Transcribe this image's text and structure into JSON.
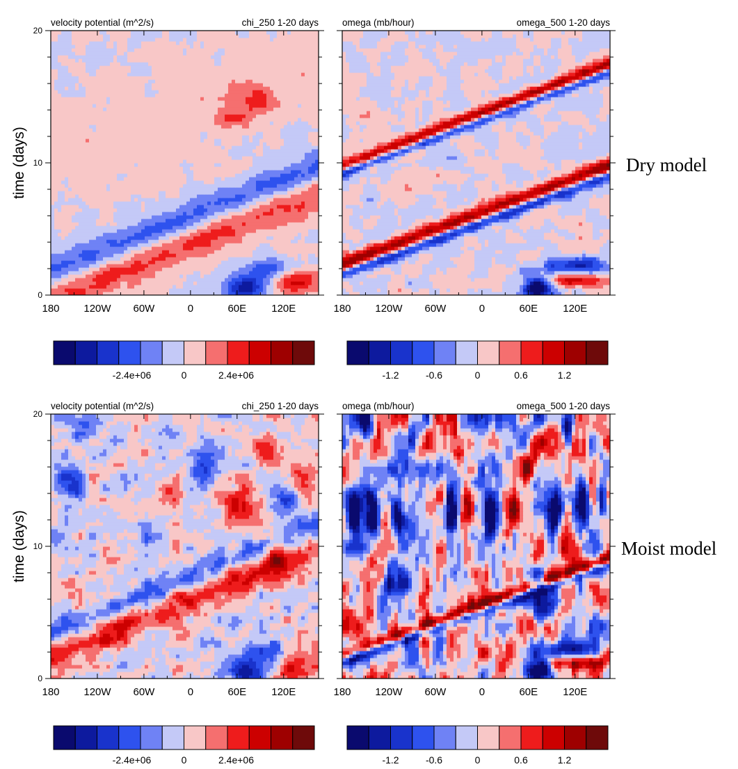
{
  "model_labels": {
    "dry": "Dry model",
    "moist": "Moist model"
  },
  "chart_data": [
    {
      "type": "heatmap",
      "row": "dry",
      "field": "chi",
      "title_left": "velocity potential (m^2/s)",
      "title_right": "chi_250 1-20 days",
      "ylabel": "time (days)",
      "xlabel": "",
      "x_ticks": [
        "180",
        "120W",
        "60W",
        "0",
        "60E",
        "120E"
      ],
      "y_ticks": [
        "0",
        "10",
        "20"
      ],
      "xlim": [
        -180,
        165
      ],
      "ylim": [
        0,
        20
      ],
      "colorbar": {
        "min": -6000000,
        "max": 6000000,
        "levels": 12,
        "labels": [
          {
            "v": -2400000,
            "t": "-2.4e+06"
          },
          {
            "v": 0,
            "t": "0"
          },
          {
            "v": 2400000,
            "t": "2.4e+06"
          }
        ]
      },
      "features": [
        {
          "kind": "band",
          "x0": -180,
          "t0": 0.0,
          "x1": 165,
          "t1": 8.0,
          "width": 1.6,
          "value": 2400000
        },
        {
          "kind": "band",
          "x0": -180,
          "t0": 1.7,
          "x1": 165,
          "t1": 9.6,
          "width": 1.3,
          "value": -2800000
        },
        {
          "kind": "band",
          "x0": -180,
          "t0": 9.6,
          "x1": 165,
          "t1": 17.5,
          "width": 2.8,
          "value": 600000
        },
        {
          "kind": "blob",
          "x": 72,
          "t": 0.6,
          "rx": 28,
          "rt": 0.9,
          "value": -4800000
        },
        {
          "kind": "blob",
          "x": 135,
          "t": 1.0,
          "rx": 32,
          "rt": 0.9,
          "value": 3400000
        },
        {
          "kind": "blob",
          "x": 100,
          "t": 2.0,
          "rx": 30,
          "rt": 0.8,
          "value": -3000000
        },
        {
          "kind": "blob",
          "x": 85,
          "t": 14.8,
          "rx": 28,
          "rt": 1.2,
          "value": 2000000
        },
        {
          "kind": "blob",
          "x": 50,
          "t": 13.3,
          "rx": 22,
          "rt": 0.6,
          "value": 1600000
        }
      ],
      "noise_amp": 500000
    },
    {
      "type": "heatmap",
      "row": "dry",
      "field": "omega",
      "title_left": "omega (mb/hour)",
      "title_right": "omega_500 1-20 days",
      "ylabel": "",
      "xlabel": "",
      "x_ticks": [
        "180",
        "120W",
        "60W",
        "0",
        "60E",
        "120E"
      ],
      "y_ticks": [],
      "xlim": [
        -180,
        165
      ],
      "ylim": [
        0,
        20
      ],
      "colorbar": {
        "min": -1.8,
        "max": 1.8,
        "levels": 12,
        "labels": [
          {
            "v": -1.2,
            "t": "-1.2"
          },
          {
            "v": -0.6,
            "t": "-0.6"
          },
          {
            "v": 0,
            "t": "0"
          },
          {
            "v": 0.6,
            "t": "0.6"
          },
          {
            "v": 1.2,
            "t": "1.2"
          }
        ]
      },
      "features": [
        {
          "kind": "band",
          "x0": -180,
          "t0": 2.3,
          "x1": 165,
          "t1": 9.8,
          "width": 0.6,
          "value": 1.4
        },
        {
          "kind": "band",
          "x0": -180,
          "t0": 1.6,
          "x1": 165,
          "t1": 9.1,
          "width": 0.45,
          "value": -1.3
        },
        {
          "kind": "band",
          "x0": -180,
          "t0": 9.8,
          "x1": 165,
          "t1": 17.5,
          "width": 0.45,
          "value": 1.2
        },
        {
          "kind": "band",
          "x0": -180,
          "t0": 9.2,
          "x1": 165,
          "t1": 16.9,
          "width": 0.35,
          "value": -0.9
        },
        {
          "kind": "blob",
          "x": 72,
          "t": 0.6,
          "rx": 18,
          "rt": 0.8,
          "value": -2.0
        },
        {
          "kind": "blob",
          "x": 120,
          "t": 2.3,
          "rx": 40,
          "rt": 0.6,
          "value": -1.2
        },
        {
          "kind": "blob",
          "x": 120,
          "t": 1.1,
          "rx": 40,
          "rt": 0.5,
          "value": 1.2
        }
      ],
      "noise_amp": 0.3
    },
    {
      "type": "heatmap",
      "row": "moist",
      "field": "chi",
      "title_left": "velocity potential (m^2/s)",
      "title_right": "chi_250 1-20 days",
      "ylabel": "time (days)",
      "xlabel": "",
      "x_ticks": [
        "180",
        "120W",
        "60W",
        "0",
        "60E",
        "120E"
      ],
      "y_ticks": [
        "0",
        "10",
        "20"
      ],
      "xlim": [
        -180,
        165
      ],
      "ylim": [
        0,
        20
      ],
      "colorbar": {
        "min": -6000000,
        "max": 6000000,
        "levels": 12,
        "labels": [
          {
            "v": -2400000,
            "t": "-2.4e+06"
          },
          {
            "v": 0,
            "t": "0"
          },
          {
            "v": 2400000,
            "t": "2.4e+06"
          }
        ]
      },
      "features": [
        {
          "kind": "band",
          "x0": -180,
          "t0": 1.8,
          "x1": 40,
          "t1": 7.0,
          "width": 1.3,
          "value": 2800000
        },
        {
          "kind": "band",
          "x0": -180,
          "t0": 3.4,
          "x1": 40,
          "t1": 8.6,
          "width": 1.0,
          "value": -2400000
        },
        {
          "kind": "blob",
          "x": 72,
          "t": 0.6,
          "rx": 28,
          "rt": 0.9,
          "value": -4500000
        },
        {
          "kind": "blob",
          "x": 135,
          "t": 1.0,
          "rx": 32,
          "rt": 0.9,
          "value": 3000000
        },
        {
          "kind": "blob",
          "x": 100,
          "t": 2.0,
          "rx": 28,
          "rt": 0.8,
          "value": -2600000
        },
        {
          "kind": "blob",
          "x": 62,
          "t": 13.2,
          "rx": 24,
          "rt": 1.4,
          "value": 3800000
        },
        {
          "kind": "blob",
          "x": -155,
          "t": 15.0,
          "rx": 18,
          "rt": 1.6,
          "value": -3200000
        },
        {
          "kind": "blob",
          "x": 20,
          "t": 16.2,
          "rx": 18,
          "rt": 1.3,
          "value": -2800000
        },
        {
          "kind": "blob",
          "x": 95,
          "t": 17.5,
          "rx": 18,
          "rt": 1.2,
          "value": 2600000
        },
        {
          "kind": "blob",
          "x": 145,
          "t": 15.5,
          "rx": 16,
          "rt": 1.2,
          "value": 2400000
        },
        {
          "kind": "blob",
          "x": -140,
          "t": 19.0,
          "rx": 20,
          "rt": 1.0,
          "value": -2200000
        },
        {
          "kind": "blob",
          "x": -60,
          "t": 10.5,
          "rx": 14,
          "rt": 1.2,
          "value": -2200000
        },
        {
          "kind": "blob",
          "x": 125,
          "t": 13.5,
          "rx": 16,
          "rt": 1.3,
          "value": -2600000
        },
        {
          "kind": "blob",
          "x": 110,
          "t": 9.0,
          "rx": 16,
          "rt": 1.4,
          "value": 2400000
        },
        {
          "kind": "blob",
          "x": -30,
          "t": 14.0,
          "rx": 14,
          "rt": 1.0,
          "value": 1800000
        }
      ],
      "noise_amp": 1500000
    },
    {
      "type": "heatmap",
      "row": "moist",
      "field": "omega",
      "title_left": "omega (mb/hour)",
      "title_right": "omega_500 1-20 days",
      "ylabel": "",
      "xlabel": "",
      "x_ticks": [
        "180",
        "120W",
        "60W",
        "0",
        "60E",
        "120E"
      ],
      "y_ticks": [],
      "xlim": [
        -180,
        165
      ],
      "ylim": [
        0,
        20
      ],
      "colorbar": {
        "min": -1.8,
        "max": 1.8,
        "levels": 12,
        "labels": [
          {
            "v": -1.2,
            "t": "-1.2"
          },
          {
            "v": -0.6,
            "t": "-0.6"
          },
          {
            "v": 0,
            "t": "0"
          },
          {
            "v": 0.6,
            "t": "0.6"
          },
          {
            "v": 1.2,
            "t": "1.2"
          }
        ]
      },
      "features": [
        {
          "kind": "band",
          "x0": -180,
          "t0": 1.8,
          "x1": 165,
          "t1": 9.2,
          "width": 0.5,
          "value": 1.3
        },
        {
          "kind": "band",
          "x0": -180,
          "t0": 1.2,
          "x1": 165,
          "t1": 8.6,
          "width": 0.4,
          "value": -1.1
        },
        {
          "kind": "blob",
          "x": 72,
          "t": 0.6,
          "rx": 16,
          "rt": 0.8,
          "value": -2.0
        },
        {
          "kind": "blob",
          "x": 120,
          "t": 2.3,
          "rx": 40,
          "rt": 0.6,
          "value": -1.3
        },
        {
          "kind": "blob",
          "x": 120,
          "t": 1.2,
          "rx": 40,
          "rt": 0.5,
          "value": 1.3
        },
        {
          "kind": "blob",
          "x": 75,
          "t": 5.5,
          "rx": 10,
          "rt": 1.8,
          "value": -1.8
        },
        {
          "kind": "blob",
          "x": -165,
          "t": 12.8,
          "rx": 8,
          "rt": 1.4,
          "value": -2.0
        },
        {
          "kind": "blob",
          "x": -140,
          "t": 12.5,
          "rx": 8,
          "rt": 1.6,
          "value": -2.0
        },
        {
          "kind": "blob",
          "x": -110,
          "t": 12.4,
          "rx": 8,
          "rt": 1.4,
          "value": -1.9
        },
        {
          "kind": "blob",
          "x": -40,
          "t": 12.8,
          "rx": 8,
          "rt": 1.6,
          "value": -1.8
        },
        {
          "kind": "blob",
          "x": 10,
          "t": 12.3,
          "rx": 8,
          "rt": 1.4,
          "value": -2.0
        },
        {
          "kind": "blob",
          "x": 95,
          "t": 12.8,
          "rx": 8,
          "rt": 1.6,
          "value": -2.0
        },
        {
          "kind": "blob",
          "x": 130,
          "t": 13.2,
          "rx": 8,
          "rt": 1.4,
          "value": -1.9
        },
        {
          "kind": "blob",
          "x": 155,
          "t": 14.0,
          "rx": 7,
          "rt": 1.4,
          "value": -1.8
        },
        {
          "kind": "blob",
          "x": -150,
          "t": 19.0,
          "rx": 7,
          "rt": 1.4,
          "value": -1.7
        },
        {
          "kind": "blob",
          "x": -90,
          "t": 18.6,
          "rx": 7,
          "rt": 1.2,
          "value": -1.6
        },
        {
          "kind": "blob",
          "x": 110,
          "t": 18.8,
          "rx": 7,
          "rt": 1.4,
          "value": -1.8
        },
        {
          "kind": "blob",
          "x": -120,
          "t": 7.5,
          "rx": 7,
          "rt": 1.0,
          "value": -1.4
        },
        {
          "kind": "blob",
          "x": -95,
          "t": 7.6,
          "rx": 7,
          "rt": 1.0,
          "value": -1.4
        },
        {
          "kind": "blob",
          "x": 40,
          "t": 12.6,
          "rx": 9,
          "rt": 1.2,
          "value": 1.5
        },
        {
          "kind": "blob",
          "x": -20,
          "t": 12.8,
          "rx": 9,
          "rt": 1.2,
          "value": 1.4
        },
        {
          "kind": "blob",
          "x": 60,
          "t": 16.0,
          "rx": 10,
          "rt": 1.2,
          "value": 1.3
        }
      ],
      "noise_amp": 1.15,
      "noise_stretch_t": 2.2
    }
  ],
  "colors": {
    "palette": [
      "#0a0a6e",
      "#0d1a9e",
      "#1933cc",
      "#2e52ee",
      "#6f82f5",
      "#c4c9f7",
      "#f8c7c7",
      "#f56f6f",
      "#ee1c1c",
      "#cc0000",
      "#9e0000",
      "#6e0a0a"
    ]
  }
}
